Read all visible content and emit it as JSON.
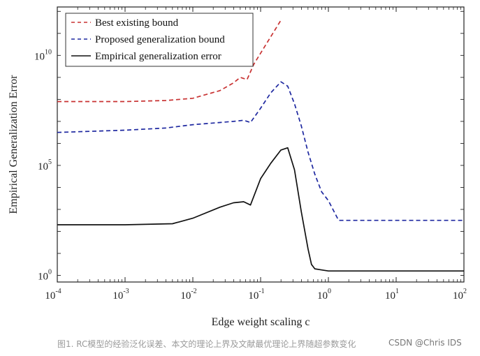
{
  "chart_data": {
    "type": "line",
    "title": "",
    "xlabel": "Edge weight scaling c",
    "ylabel": "Empirical  Generalization Error",
    "x_scale": "log",
    "y_scale": "log",
    "xlim": [
      0.0001,
      100
    ],
    "ylim_exponent": [
      -0.3,
      12.2
    ],
    "x_ticks": [
      {
        "base": "10",
        "exp": "-4",
        "value": 0.0001
      },
      {
        "base": "10",
        "exp": "-3",
        "value": 0.001
      },
      {
        "base": "10",
        "exp": "-2",
        "value": 0.01
      },
      {
        "base": "10",
        "exp": "-1",
        "value": 0.1
      },
      {
        "base": "10",
        "exp": "0",
        "value": 1
      },
      {
        "base": "10",
        "exp": "1",
        "value": 10
      },
      {
        "base": "10",
        "exp": "2",
        "value": 100
      }
    ],
    "y_ticks": [
      {
        "base": "10",
        "exp": "0",
        "value": 0
      },
      {
        "base": "10",
        "exp": "5",
        "value": 5
      },
      {
        "base": "10",
        "exp": "10",
        "value": 10
      }
    ],
    "legend_position": "top-left",
    "series": [
      {
        "name": "Best existing bound",
        "color": "#c83232",
        "style": "dashed",
        "points_log10": [
          [
            -4,
            7.9
          ],
          [
            -3,
            7.9
          ],
          [
            -2.4,
            7.95
          ],
          [
            -2,
            8.05
          ],
          [
            -1.6,
            8.4
          ],
          [
            -1.4,
            8.75
          ],
          [
            -1.3,
            9.0
          ],
          [
            -1.2,
            8.9
          ],
          [
            -1.1,
            9.6
          ],
          [
            -0.9,
            10.6
          ],
          [
            -0.7,
            11.6
          ]
        ]
      },
      {
        "name": "Proposed generalization bound",
        "color": "#1e28a0",
        "style": "dashed",
        "points_log10": [
          [
            -4,
            6.5
          ],
          [
            -3,
            6.6
          ],
          [
            -2.4,
            6.7
          ],
          [
            -2,
            6.85
          ],
          [
            -1.6,
            6.95
          ],
          [
            -1.4,
            7.0
          ],
          [
            -1.25,
            7.05
          ],
          [
            -1.15,
            6.95
          ],
          [
            -1.0,
            7.6
          ],
          [
            -0.85,
            8.3
          ],
          [
            -0.7,
            8.8
          ],
          [
            -0.6,
            8.6
          ],
          [
            -0.5,
            7.8
          ],
          [
            -0.4,
            6.8
          ],
          [
            -0.3,
            5.6
          ],
          [
            -0.2,
            4.6
          ],
          [
            -0.1,
            3.8
          ],
          [
            0.0,
            3.4
          ],
          [
            0.15,
            2.5
          ],
          [
            1.0,
            2.5
          ],
          [
            2.0,
            2.5
          ]
        ]
      },
      {
        "name": "Empirical generalization error",
        "color": "#111111",
        "style": "solid",
        "points_log10": [
          [
            -4,
            2.3
          ],
          [
            -3,
            2.3
          ],
          [
            -2.3,
            2.35
          ],
          [
            -2,
            2.6
          ],
          [
            -1.6,
            3.1
          ],
          [
            -1.4,
            3.3
          ],
          [
            -1.25,
            3.35
          ],
          [
            -1.15,
            3.2
          ],
          [
            -1.0,
            4.4
          ],
          [
            -0.85,
            5.1
          ],
          [
            -0.7,
            5.7
          ],
          [
            -0.6,
            5.8
          ],
          [
            -0.5,
            4.8
          ],
          [
            -0.4,
            2.9
          ],
          [
            -0.3,
            1.2
          ],
          [
            -0.25,
            0.5
          ],
          [
            -0.2,
            0.3
          ],
          [
            -0.1,
            0.25
          ],
          [
            0.0,
            0.2
          ],
          [
            1.0,
            0.2
          ],
          [
            2.0,
            0.2
          ]
        ]
      }
    ]
  },
  "caption": "图1. RC模型的经验泛化误差、本文的理论上界及文献最优理论上界随超参数变化",
  "watermark": "CSDN @Chris IDS"
}
